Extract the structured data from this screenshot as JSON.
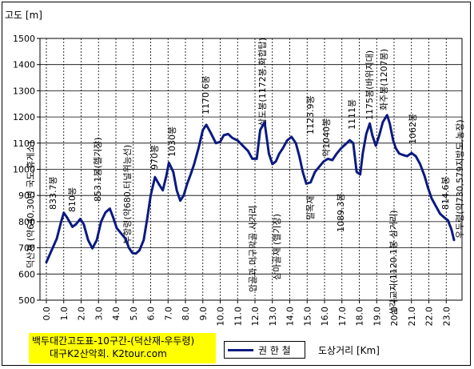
{
  "chart_data": {
    "type": "line",
    "ylabel": "고도 [m]",
    "xlabel": "도상거리 [Km]",
    "ylim": [
      500,
      1500
    ],
    "xlim": [
      0.0,
      23.5
    ],
    "yticks": [
      "500",
      "600",
      "700",
      "800",
      "900",
      "1000",
      "1100",
      "1200",
      "1300",
      "1400",
      "1500"
    ],
    "xticks": [
      "0.0",
      "1.0",
      "2.0",
      "3.0",
      "4.0",
      "5.0",
      "6.0",
      "7.0",
      "8.0",
      "9.0",
      "10.0",
      "11.0",
      "12.0",
      "13.0",
      "14.0",
      "15.0",
      "16.0",
      "17.0",
      "18.0",
      "19.0",
      "20.0",
      "21.0",
      "22.0",
      "23.0"
    ],
    "grid": true,
    "legend_position": "bottom",
    "series": [
      {
        "name": "권 한 철",
        "color": "#0b1a80",
        "x": [
          0.0,
          0.3,
          0.6,
          0.85,
          1.0,
          1.2,
          1.5,
          1.7,
          1.95,
          2.15,
          2.4,
          2.65,
          2.9,
          3.15,
          3.4,
          3.65,
          3.85,
          4.05,
          4.3,
          4.55,
          4.75,
          4.95,
          5.15,
          5.35,
          5.6,
          5.8,
          6.0,
          6.25,
          6.5,
          6.7,
          6.9,
          7.05,
          7.3,
          7.5,
          7.7,
          7.9,
          8.1,
          8.3,
          8.5,
          8.75,
          9.0,
          9.2,
          9.45,
          9.75,
          10.0,
          10.2,
          10.45,
          10.7,
          11.0,
          11.3,
          11.6,
          11.85,
          12.1,
          12.3,
          12.55,
          12.8,
          13.0,
          13.2,
          13.4,
          13.6,
          13.85,
          14.1,
          14.35,
          14.55,
          14.75,
          14.95,
          15.2,
          15.45,
          15.7,
          15.95,
          16.2,
          16.45,
          16.7,
          16.95,
          17.2,
          17.45,
          17.65,
          17.85,
          18.05,
          18.2,
          18.4,
          18.6,
          18.75,
          18.95,
          19.15,
          19.35,
          19.6,
          19.75,
          19.95,
          20.1,
          20.3,
          20.5,
          20.75,
          21.0,
          21.25,
          21.5,
          21.75,
          21.95,
          22.15,
          22.4,
          22.65,
          22.9,
          23.1,
          23.3,
          23.45
        ],
        "values": [
          645,
          690,
          735,
          800,
          834,
          815,
          780,
          790,
          810,
          790,
          730,
          698,
          730,
          800,
          835,
          850,
          815,
          775,
          755,
          735,
          700,
          680,
          678,
          690,
          730,
          810,
          900,
          970,
          940,
          920,
          975,
          1025,
          990,
          920,
          880,
          900,
          945,
          980,
          1020,
          1080,
          1150,
          1170,
          1140,
          1100,
          1105,
          1130,
          1135,
          1120,
          1110,
          1090,
          1070,
          1040,
          1040,
          1150,
          1180,
          1060,
          1020,
          1030,
          1060,
          1080,
          1110,
          1124,
          1100,
          1050,
          990,
          945,
          950,
          990,
          1010,
          1030,
          1040,
          1035,
          1060,
          1080,
          1095,
          1111,
          1100,
          990,
          980,
          1060,
          1135,
          1175,
          1130,
          1090,
          1130,
          1180,
          1207,
          1175,
          1110,
          1080,
          1060,
          1055,
          1050,
          1062,
          1050,
          1020,
          975,
          930,
          890,
          860,
          830,
          815,
          805,
          770,
          730
        ]
      }
    ],
    "annotations": [
      {
        "text": "덕산재 (약640,30번 국도,휴게소)"
      },
      {
        "text": "833.7봉"
      },
      {
        "text": "810봉"
      },
      {
        "text": "853.1봉(헬기장)"
      },
      {
        "text": "부항령(약680,터널위능선)"
      },
      {
        "text": "970봉"
      },
      {
        "text": "1030봉"
      },
      {
        "text": "1170.6봉"
      },
      {
        "text": "안골과 머구막골 사거리"
      },
      {
        "text": "삼도봉(1172봉,화합탑)"
      },
      {
        "text": "삼마골재 (헬기장)"
      },
      {
        "text": "1123.9봉"
      },
      {
        "text": "밀목재"
      },
      {
        "text": "약1040봉"
      },
      {
        "text": "1089.3봉"
      },
      {
        "text": "1111봉"
      },
      {
        "text": "1175봉(바위지대)"
      },
      {
        "text": "화주봉(1207봉)"
      },
      {
        "text": "삼각교지(1120.1봉 삼거리)"
      },
      {
        "text": "1062봉"
      },
      {
        "text": "814.6봉"
      },
      {
        "text": "우두령(약730,579지방도,농장)"
      }
    ]
  },
  "title_box": {
    "line1": "백두대간고도표-10구간-(덕산재-우두령)",
    "line2": "대구K2산악회. K2tour.com",
    "background": "#ffff00"
  },
  "legend": {
    "label": "권 한 철"
  }
}
